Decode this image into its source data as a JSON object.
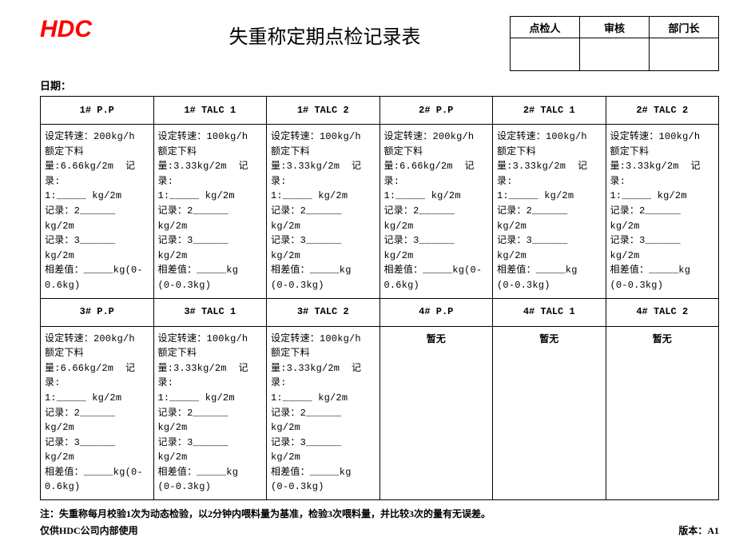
{
  "logo": "HDC",
  "title": "失重称定期点检记录表",
  "signoff": {
    "cols": [
      "点检人",
      "审核",
      "部门长"
    ],
    "vals": [
      "",
      "",
      ""
    ]
  },
  "date_label": "日期：",
  "row1_headers": [
    "1# P.P",
    "1# TALC 1",
    "1# TALC 2",
    "2# P.P",
    "2# TALC 1",
    "2# TALC 2"
  ],
  "row2_headers": [
    "3# P.P",
    "3# TALC 1",
    "3# TALC 2",
    "4# P.P",
    "4# TALC 1",
    "4# TALC 2"
  ],
  "body_pp": "设定转速：200kg/h\n额定下料\n量:6.66kg/2m  记录:\n1:_____ kg/2m\n记录：2______ kg/2m\n记录：3______ kg/2m\n相差值：_____kg(0-\n0.6kg)",
  "body_talc": "设定转速：100kg/h\n额定下料\n量:3.33kg/2m  记录:\n1:_____ kg/2m\n记录：2______ kg/2m\n记录：3______ kg/2m\n相差值：_____kg\n(0-0.3kg)",
  "row1_types": [
    "pp",
    "talc",
    "talc",
    "pp",
    "talc",
    "talc"
  ],
  "row2_types": [
    "pp",
    "talc",
    "talc",
    "none",
    "none",
    "none"
  ],
  "none_text": "暂无",
  "note": "注：失重称每月校验1次为动态检验，以2分钟内喂料量为基准，检验3次喂料量，并比较3次的量有无误差。",
  "footer_left": "仅供HDC公司内部使用",
  "footer_right": "版本：A1",
  "colors": {
    "logo": "#ff0000",
    "text": "#000000",
    "background": "#ffffff",
    "border": "#000000"
  }
}
